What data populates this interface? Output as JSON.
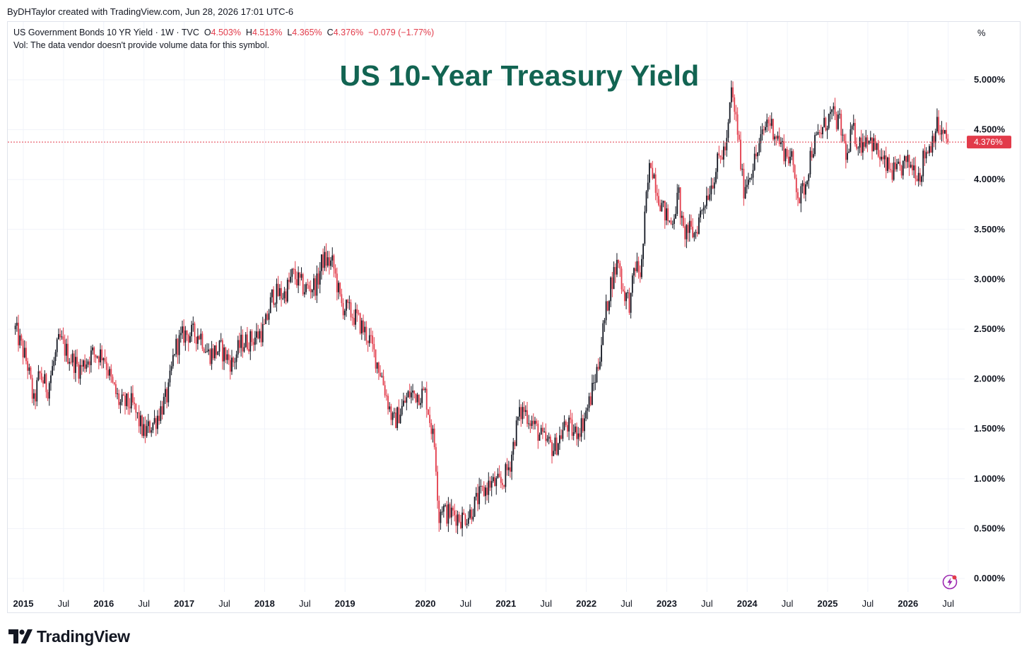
{
  "header": {
    "author_line": "ByDHTaylor created with TradingView.com, Jun 28, 2026 17:01 UTC-6"
  },
  "legend": {
    "symbol": "US Government Bonds 10 YR Yield · 1W · TVC",
    "o_label": "O",
    "o_value": "4.503%",
    "h_label": "H",
    "h_value": "4.513%",
    "l_label": "L",
    "l_value": "4.365%",
    "c_label": "C",
    "c_value": "4.376%",
    "change": "−0.079 (−1.77%)",
    "vol_note": "Vol: The data vendor doesn't provide volume data for this symbol."
  },
  "logo": {
    "text": "TradingView"
  },
  "icons": {
    "flash": "lightning-icon",
    "logo": "tradingview-logo-icon"
  },
  "colors": {
    "up": "#131722",
    "down": "#e23b4a",
    "title": "#126452",
    "price_tag": "#e23b4a"
  },
  "chart_data": {
    "type": "line",
    "title": "US 10-Year Treasury Yield",
    "unit_label": "%",
    "ylim": [
      0,
      5.25
    ],
    "y_ticks": [
      0,
      0.5,
      1,
      1.5,
      2,
      2.5,
      3,
      3.5,
      4,
      4.5,
      5
    ],
    "y_tick_labels": [
      "0.000%",
      "0.500%",
      "1.000%",
      "1.500%",
      "2.000%",
      "2.500%",
      "3.000%",
      "3.500%",
      "4.000%",
      "4.500%",
      "5.000%"
    ],
    "x_ticks": [
      {
        "t": 2015.0,
        "label": "2015",
        "bold": true
      },
      {
        "t": 2015.5,
        "label": "Jul",
        "bold": false
      },
      {
        "t": 2016.0,
        "label": "2016",
        "bold": true
      },
      {
        "t": 2016.5,
        "label": "Jul",
        "bold": false
      },
      {
        "t": 2017.0,
        "label": "2017",
        "bold": true
      },
      {
        "t": 2017.5,
        "label": "Jul",
        "bold": false
      },
      {
        "t": 2018.0,
        "label": "2018",
        "bold": true
      },
      {
        "t": 2018.5,
        "label": "Jul",
        "bold": false
      },
      {
        "t": 2019.0,
        "label": "2019",
        "bold": true
      },
      {
        "t": 2020.0,
        "label": "2020",
        "bold": true
      },
      {
        "t": 2020.5,
        "label": "Jul",
        "bold": false
      },
      {
        "t": 2021.0,
        "label": "2021",
        "bold": true
      },
      {
        "t": 2021.5,
        "label": "Jul",
        "bold": false
      },
      {
        "t": 2022.0,
        "label": "2022",
        "bold": true
      },
      {
        "t": 2022.5,
        "label": "Jul",
        "bold": false
      },
      {
        "t": 2023.0,
        "label": "2023",
        "bold": true
      },
      {
        "t": 2023.5,
        "label": "Jul",
        "bold": false
      },
      {
        "t": 2024.0,
        "label": "2024",
        "bold": true
      },
      {
        "t": 2024.5,
        "label": "Jul",
        "bold": false
      },
      {
        "t": 2025.0,
        "label": "2025",
        "bold": true
      },
      {
        "t": 2025.5,
        "label": "Jul",
        "bold": false
      },
      {
        "t": 2026.0,
        "label": "2026",
        "bold": true
      },
      {
        "t": 2026.5,
        "label": "Jul",
        "bold": false
      }
    ],
    "last_value": 4.376,
    "last_value_label": "4.376%",
    "series": [
      {
        "x": [
          2014.9,
          2015.05,
          2015.13,
          2015.2,
          2015.3,
          2015.45,
          2015.55,
          2015.7,
          2015.85,
          2016.0,
          2016.1,
          2016.2,
          2016.35,
          2016.5,
          2016.65,
          2016.8,
          2016.88,
          2017.0,
          2017.1,
          2017.2,
          2017.3,
          2017.45,
          2017.6,
          2017.7,
          2017.85,
          2018.0,
          2018.1,
          2018.25,
          2018.35,
          2018.5,
          2018.65,
          2018.72,
          2018.85,
          2018.95,
          2019.15,
          2019.3,
          2019.45,
          2019.6,
          2019.7,
          2019.8,
          2019.9,
          2020.0,
          2020.12,
          2020.17,
          2020.2,
          2020.25,
          2020.35,
          2020.45,
          2020.55,
          2020.65,
          2020.8,
          2020.95,
          2021.05,
          2021.15,
          2021.22,
          2021.3,
          2021.45,
          2021.6,
          2021.75,
          2021.85,
          2021.95,
          2022.05,
          2022.15,
          2022.2,
          2022.3,
          2022.4,
          2022.45,
          2022.55,
          2022.6,
          2022.68,
          2022.75,
          2022.8,
          2022.88,
          2022.95,
          2023.05,
          2023.15,
          2023.2,
          2023.25,
          2023.35,
          2023.45,
          2023.55,
          2023.65,
          2023.75,
          2023.8,
          2023.88,
          2023.95,
          2024.05,
          2024.12,
          2024.25,
          2024.3,
          2024.45,
          2024.55,
          2024.65,
          2024.72,
          2024.8,
          2024.9,
          2025.0,
          2025.05,
          2025.15,
          2025.25,
          2025.3,
          2025.4,
          2025.5,
          2025.6,
          2025.7,
          2025.85,
          2025.95,
          2026.05,
          2026.15,
          2026.2,
          2026.28,
          2026.35,
          2026.42,
          2026.5
        ],
        "y": [
          2.5,
          2.15,
          1.75,
          2.05,
          1.9,
          2.4,
          2.25,
          2.1,
          2.25,
          2.25,
          1.95,
          1.75,
          1.75,
          1.45,
          1.6,
          1.85,
          2.3,
          2.45,
          2.45,
          2.45,
          2.25,
          2.3,
          2.15,
          2.35,
          2.4,
          2.5,
          2.85,
          2.85,
          3.05,
          2.9,
          2.95,
          3.2,
          3.15,
          2.75,
          2.6,
          2.4,
          2.05,
          1.55,
          1.7,
          1.85,
          1.85,
          1.85,
          1.3,
          0.6,
          0.75,
          0.65,
          0.65,
          0.6,
          0.65,
          0.8,
          0.95,
          0.95,
          1.15,
          1.6,
          1.7,
          1.6,
          1.4,
          1.3,
          1.55,
          1.45,
          1.55,
          1.8,
          2.15,
          2.45,
          2.95,
          3.2,
          2.9,
          2.75,
          3.15,
          3.05,
          3.85,
          4.2,
          3.9,
          3.7,
          3.55,
          3.85,
          3.45,
          3.5,
          3.45,
          3.75,
          3.95,
          4.2,
          4.35,
          4.9,
          4.5,
          3.9,
          4.1,
          4.25,
          4.6,
          4.55,
          4.3,
          4.2,
          3.8,
          3.95,
          4.3,
          4.45,
          4.6,
          4.65,
          4.55,
          4.2,
          4.5,
          4.35,
          4.45,
          4.3,
          4.15,
          4.05,
          4.15,
          4.15,
          4.05,
          4.25,
          4.35,
          4.55,
          4.45,
          4.38
        ]
      }
    ]
  }
}
